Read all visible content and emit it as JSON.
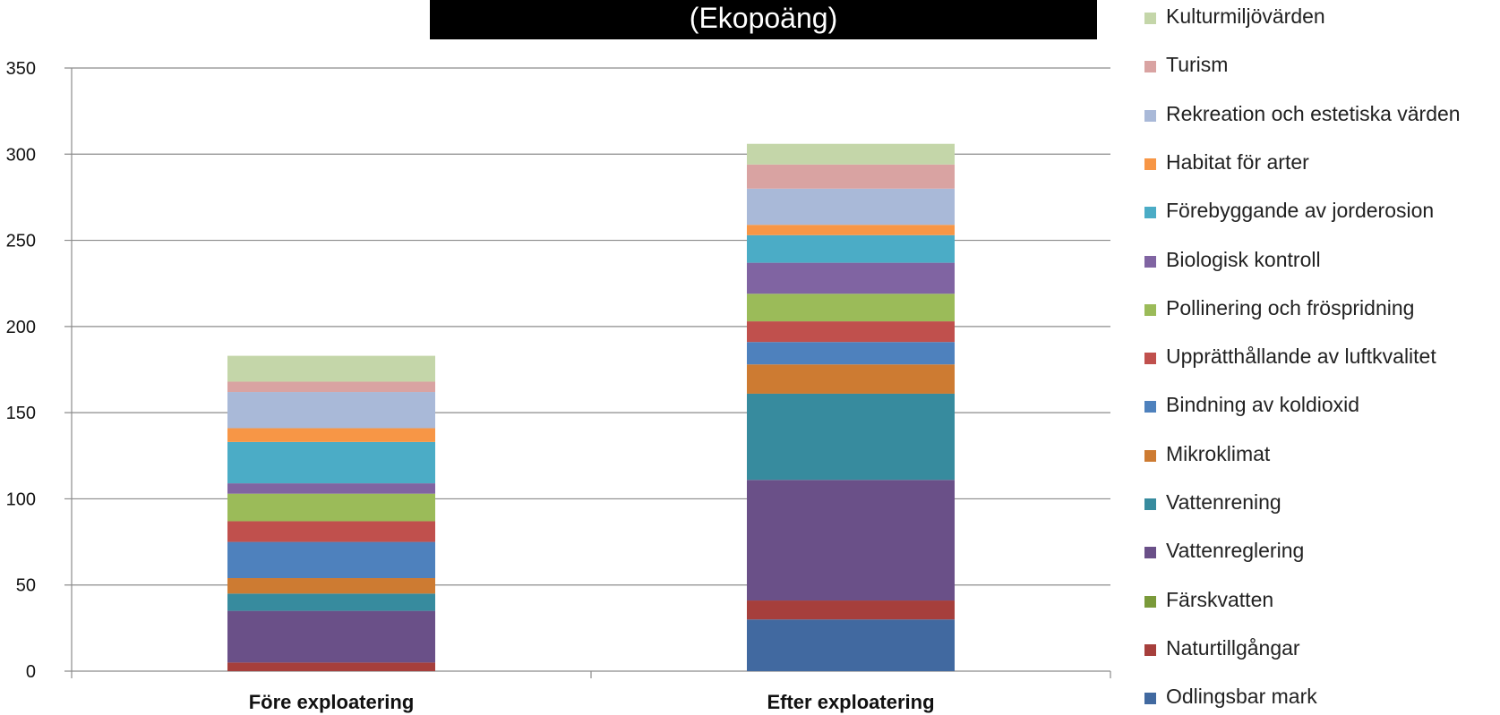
{
  "chart_data": {
    "type": "bar",
    "stacked": true,
    "title": "(Ekopoäng)",
    "xlabel": "",
    "ylabel": "",
    "ylim": [
      0,
      350
    ],
    "yticks": [
      0,
      50,
      100,
      150,
      200,
      250,
      300,
      350
    ],
    "grid": true,
    "legend_position": "right",
    "categories": [
      "Före exploatering",
      "Efter exploatering"
    ],
    "series": [
      {
        "name": "Odlingsbar mark",
        "color": "#4169A0",
        "values": [
          0,
          30
        ]
      },
      {
        "name": "Naturtillgångar",
        "color": "#A63F3C",
        "values": [
          5,
          11
        ]
      },
      {
        "name": "Färskvatten",
        "color": "#7A9A3A",
        "values": [
          0,
          0
        ]
      },
      {
        "name": "Vattenreglering",
        "color": "#6A5088",
        "values": [
          30,
          70
        ]
      },
      {
        "name": "Vattenrening",
        "color": "#378B9E",
        "values": [
          10,
          50
        ]
      },
      {
        "name": "Mikroklimat",
        "color": "#CD7B32",
        "values": [
          9,
          17
        ]
      },
      {
        "name": "Bindning av koldioxid",
        "color": "#4E81BD",
        "values": [
          21,
          13
        ]
      },
      {
        "name": "Upprätthållande av luftkvalitet",
        "color": "#C0504D",
        "values": [
          12,
          12
        ]
      },
      {
        "name": "Pollinering och fröspridning",
        "color": "#9BBB59",
        "values": [
          16,
          16
        ]
      },
      {
        "name": "Biologisk kontroll",
        "color": "#8064A2",
        "values": [
          6,
          18
        ]
      },
      {
        "name": "Förebyggande av jorderosion",
        "color": "#4BACC6",
        "values": [
          24,
          16
        ]
      },
      {
        "name": "Habitat för arter",
        "color": "#F79646",
        "values": [
          8,
          6
        ]
      },
      {
        "name": "Rekreation och estetiska värden",
        "color": "#A9B9D8",
        "values": [
          21,
          21
        ]
      },
      {
        "name": "Turism",
        "color": "#D9A3A2",
        "values": [
          6,
          14
        ]
      },
      {
        "name": "Kulturmiljövärden",
        "color": "#C4D6A9",
        "values": [
          15,
          12
        ]
      }
    ]
  }
}
